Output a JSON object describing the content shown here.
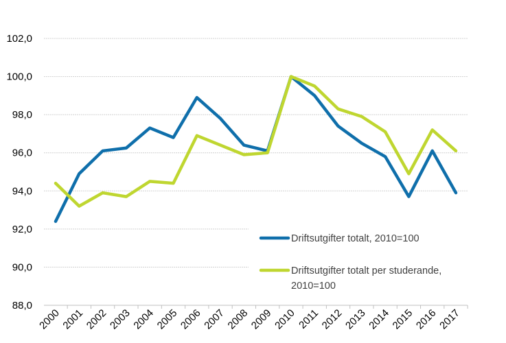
{
  "chart_data": {
    "type": "line",
    "title": "",
    "xlabel": "",
    "ylabel": "",
    "ylim": [
      88,
      102
    ],
    "yticks": [
      "88,0",
      "90,0",
      "92,0",
      "94,0",
      "96,0",
      "98,0",
      "100,0",
      "102,0"
    ],
    "ytick_values": [
      88,
      90,
      92,
      94,
      96,
      98,
      100,
      102
    ],
    "grid": true,
    "legend_placement": "bottom-right",
    "categories": [
      "2000",
      "2001",
      "2002",
      "2003",
      "2004",
      "2005",
      "2006",
      "2007",
      "2008",
      "2009",
      "2010",
      "2011",
      "2012",
      "2013",
      "2014",
      "2015",
      "2016",
      "2017"
    ],
    "series": [
      {
        "name": "Driftsutgifter totalt, 2010=100",
        "color": "#0f6fab",
        "values": [
          92.4,
          94.9,
          96.1,
          96.25,
          97.3,
          96.8,
          98.9,
          97.8,
          96.4,
          96.1,
          100.0,
          99.0,
          97.4,
          96.5,
          95.8,
          93.7,
          96.1,
          93.9
        ]
      },
      {
        "name": "Driftsutgifter totalt per studerande, 2010=100",
        "name_lines": [
          "Driftsutgifter totalt per studerande,",
          "2010=100"
        ],
        "color": "#bfd630",
        "values": [
          94.4,
          93.2,
          93.9,
          93.7,
          94.5,
          94.4,
          96.9,
          96.4,
          95.9,
          96.0,
          100.0,
          99.5,
          98.3,
          97.9,
          97.1,
          94.9,
          97.2,
          96.1
        ]
      }
    ]
  }
}
